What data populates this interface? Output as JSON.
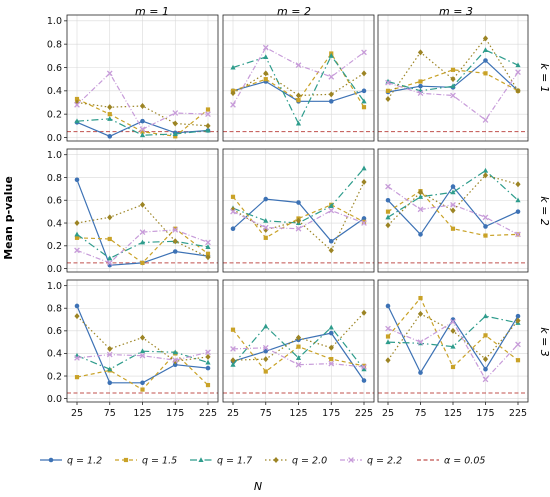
{
  "chart_data": {
    "type": "line",
    "layout": "3x3 facet grid",
    "row_labels": [
      "k = 1",
      "k = 2",
      "k = 3"
    ],
    "col_labels": [
      "m = 1",
      "m = 2",
      "m = 3"
    ],
    "x": [
      25,
      75,
      125,
      175,
      225
    ],
    "xticks": [
      "25",
      "75",
      "125",
      "175",
      "225"
    ],
    "xlabel": "N",
    "ylabel": "Mean p-value",
    "ylim": [
      -0.03,
      1.05
    ],
    "yticks": [
      "0.0",
      "0.2",
      "0.4",
      "0.6",
      "0.8",
      "1.0"
    ],
    "grid": true,
    "legend_position": "bottom",
    "series_meta": [
      {
        "name": "q = 1.2",
        "color": "#3d72b5",
        "dash": "",
        "marker": "circle"
      },
      {
        "name": "q = 1.5",
        "color": "#c9a227",
        "dash": "4,3",
        "marker": "square"
      },
      {
        "name": "q = 1.7",
        "color": "#2e9c8c",
        "dash": "7,3,1.5,3",
        "marker": "triangle"
      },
      {
        "name": "q = 2.0",
        "color": "#9c8424",
        "dash": "1.5,2.5",
        "marker": "diamond"
      },
      {
        "name": "q = 2.2",
        "color": "#c79bd9",
        "dash": "5,2,1,2",
        "marker": "x"
      }
    ],
    "reference_line": {
      "name": "α = 0.05",
      "value": 0.05,
      "color": "#c0504d"
    },
    "panels": [
      {
        "row": 0,
        "col": 0,
        "series": [
          [
            0.13,
            0.01,
            0.14,
            0.04,
            0.06
          ],
          [
            0.33,
            0.2,
            0.05,
            0.01,
            0.24
          ],
          [
            0.14,
            0.16,
            0.02,
            0.03,
            0.06
          ],
          [
            0.3,
            0.26,
            0.27,
            0.12,
            0.1
          ],
          [
            0.28,
            0.55,
            0.07,
            0.21,
            0.2
          ]
        ]
      },
      {
        "row": 0,
        "col": 1,
        "series": [
          [
            0.4,
            0.48,
            0.31,
            0.31,
            0.4
          ],
          [
            0.4,
            0.5,
            0.32,
            0.72,
            0.26
          ],
          [
            0.6,
            0.69,
            0.12,
            0.7,
            0.31
          ],
          [
            0.38,
            0.55,
            0.36,
            0.37,
            0.55
          ],
          [
            0.28,
            0.77,
            0.62,
            0.52,
            0.73
          ]
        ]
      },
      {
        "row": 0,
        "col": 2,
        "series": [
          [
            0.39,
            0.44,
            0.43,
            0.66,
            0.4
          ],
          [
            0.4,
            0.48,
            0.58,
            0.55,
            0.4
          ],
          [
            0.48,
            0.4,
            0.44,
            0.75,
            0.62
          ],
          [
            0.33,
            0.73,
            0.5,
            0.85,
            0.4
          ],
          [
            0.47,
            0.38,
            0.36,
            0.15,
            0.56
          ]
        ]
      },
      {
        "row": 1,
        "col": 0,
        "series": [
          [
            0.78,
            0.03,
            0.05,
            0.15,
            0.11
          ],
          [
            0.27,
            0.26,
            0.05,
            0.35,
            0.13
          ],
          [
            0.3,
            0.09,
            0.23,
            0.24,
            0.19
          ],
          [
            0.4,
            0.45,
            0.56,
            0.24,
            0.1
          ],
          [
            0.16,
            0.05,
            0.32,
            0.34,
            0.23
          ]
        ]
      },
      {
        "row": 1,
        "col": 1,
        "series": [
          [
            0.35,
            0.61,
            0.58,
            0.24,
            0.44
          ],
          [
            0.63,
            0.27,
            0.44,
            0.56,
            0.41
          ],
          [
            0.53,
            0.42,
            0.4,
            0.55,
            0.88
          ],
          [
            0.52,
            0.34,
            0.42,
            0.16,
            0.76
          ],
          [
            0.5,
            0.36,
            0.35,
            0.51,
            0.4
          ]
        ]
      },
      {
        "row": 1,
        "col": 2,
        "series": [
          [
            0.6,
            0.3,
            0.72,
            0.37,
            0.5
          ],
          [
            0.5,
            0.68,
            0.35,
            0.29,
            0.3
          ],
          [
            0.45,
            0.63,
            0.67,
            0.86,
            0.6
          ],
          [
            0.38,
            0.67,
            0.51,
            0.82,
            0.74
          ],
          [
            0.72,
            0.52,
            0.56,
            0.45,
            0.3
          ]
        ]
      },
      {
        "row": 2,
        "col": 0,
        "series": [
          [
            0.82,
            0.14,
            0.14,
            0.3,
            0.27
          ],
          [
            0.19,
            0.25,
            0.08,
            0.4,
            0.12
          ],
          [
            0.38,
            0.26,
            0.42,
            0.41,
            0.32
          ],
          [
            0.73,
            0.44,
            0.54,
            0.33,
            0.37
          ],
          [
            0.36,
            0.39,
            0.38,
            0.34,
            0.41
          ]
        ]
      },
      {
        "row": 2,
        "col": 1,
        "series": [
          [
            0.33,
            0.42,
            0.52,
            0.58,
            0.16
          ],
          [
            0.61,
            0.24,
            0.46,
            0.35,
            0.29
          ],
          [
            0.3,
            0.64,
            0.36,
            0.63,
            0.26
          ],
          [
            0.34,
            0.35,
            0.54,
            0.45,
            0.76
          ],
          [
            0.44,
            0.45,
            0.3,
            0.31,
            0.28
          ]
        ]
      },
      {
        "row": 2,
        "col": 2,
        "series": [
          [
            0.82,
            0.23,
            0.7,
            0.26,
            0.73
          ],
          [
            0.55,
            0.89,
            0.28,
            0.56,
            0.34
          ],
          [
            0.5,
            0.49,
            0.46,
            0.73,
            0.67
          ],
          [
            0.34,
            0.75,
            0.6,
            0.35,
            0.69
          ],
          [
            0.62,
            0.5,
            0.68,
            0.17,
            0.48
          ]
        ]
      }
    ]
  }
}
